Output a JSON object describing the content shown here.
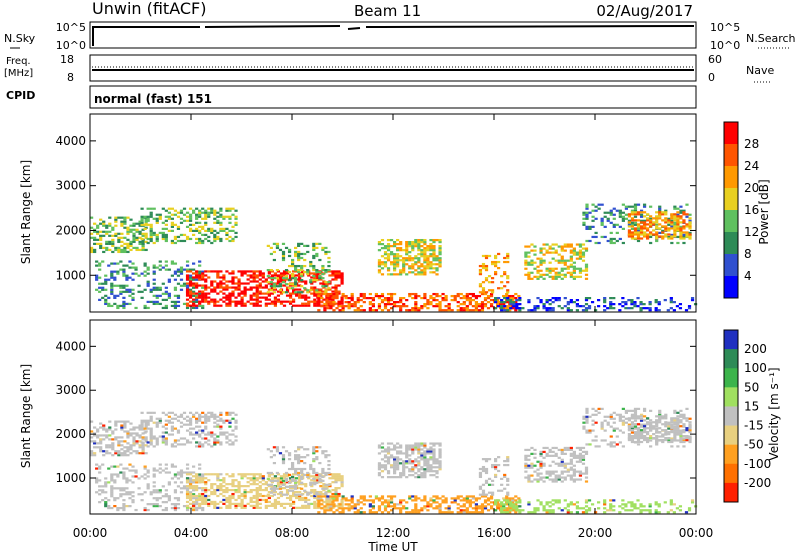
{
  "header": {
    "title": "Unwin (fitACF)",
    "beam": "Beam 11",
    "date": "02/Aug/2017"
  },
  "top_panels": {
    "nsky_label": "N.Sky",
    "nsky_top_tick": "10^5",
    "nsky_bottom_tick": "10^0",
    "nsearch_label": "N.Search",
    "freq_label_line1": "Freq.",
    "freq_label_line2": "[MHz]",
    "freq_ticks": [
      "18",
      "8"
    ],
    "nave_ticks": [
      "60",
      "0"
    ],
    "nave_label": "Nave",
    "cpid_label": "CPID",
    "cpid_value": "normal (fast) 151"
  },
  "colors": {
    "power": [
      "#0000ff",
      "#3050d0",
      "#2e8b57",
      "#5fc05f",
      "#e8d020",
      "#ff9900",
      "#ff5500",
      "#ff0000"
    ],
    "velocity": [
      "#2030c0",
      "#2e8b57",
      "#3cb44b",
      "#a0e060",
      "#c0c0c0",
      "#e8d080",
      "#ffa020",
      "#ff7000",
      "#ff2000"
    ]
  },
  "chart_data": [
    {
      "type": "heatmap",
      "ylabel": "Slant Range [km]",
      "yticks": [
        "1000",
        "2000",
        "3000",
        "4000"
      ],
      "ylim": [
        180,
        4600
      ],
      "xticks": [
        "00:00",
        "04:00",
        "08:00",
        "12:00",
        "16:00",
        "20:00",
        "00:00"
      ],
      "colorbar_label": "Power [dB]",
      "colorbar_ticks": [
        "4",
        "8",
        "12",
        "16",
        "20",
        "24",
        "28"
      ]
    },
    {
      "type": "heatmap",
      "ylabel": "Slant Range [km]",
      "yticks": [
        "1000",
        "2000",
        "3000",
        "4000"
      ],
      "ylim": [
        180,
        4600
      ],
      "xlabel": "Time UT",
      "xticks": [
        "00:00",
        "04:00",
        "08:00",
        "12:00",
        "16:00",
        "20:00",
        "00:00"
      ],
      "colorbar_label": "Velocity [m s⁻¹]",
      "colorbar_ticks": [
        "200",
        "100",
        "50",
        "15",
        "-15",
        "-50",
        "-100",
        "-200"
      ]
    }
  ]
}
